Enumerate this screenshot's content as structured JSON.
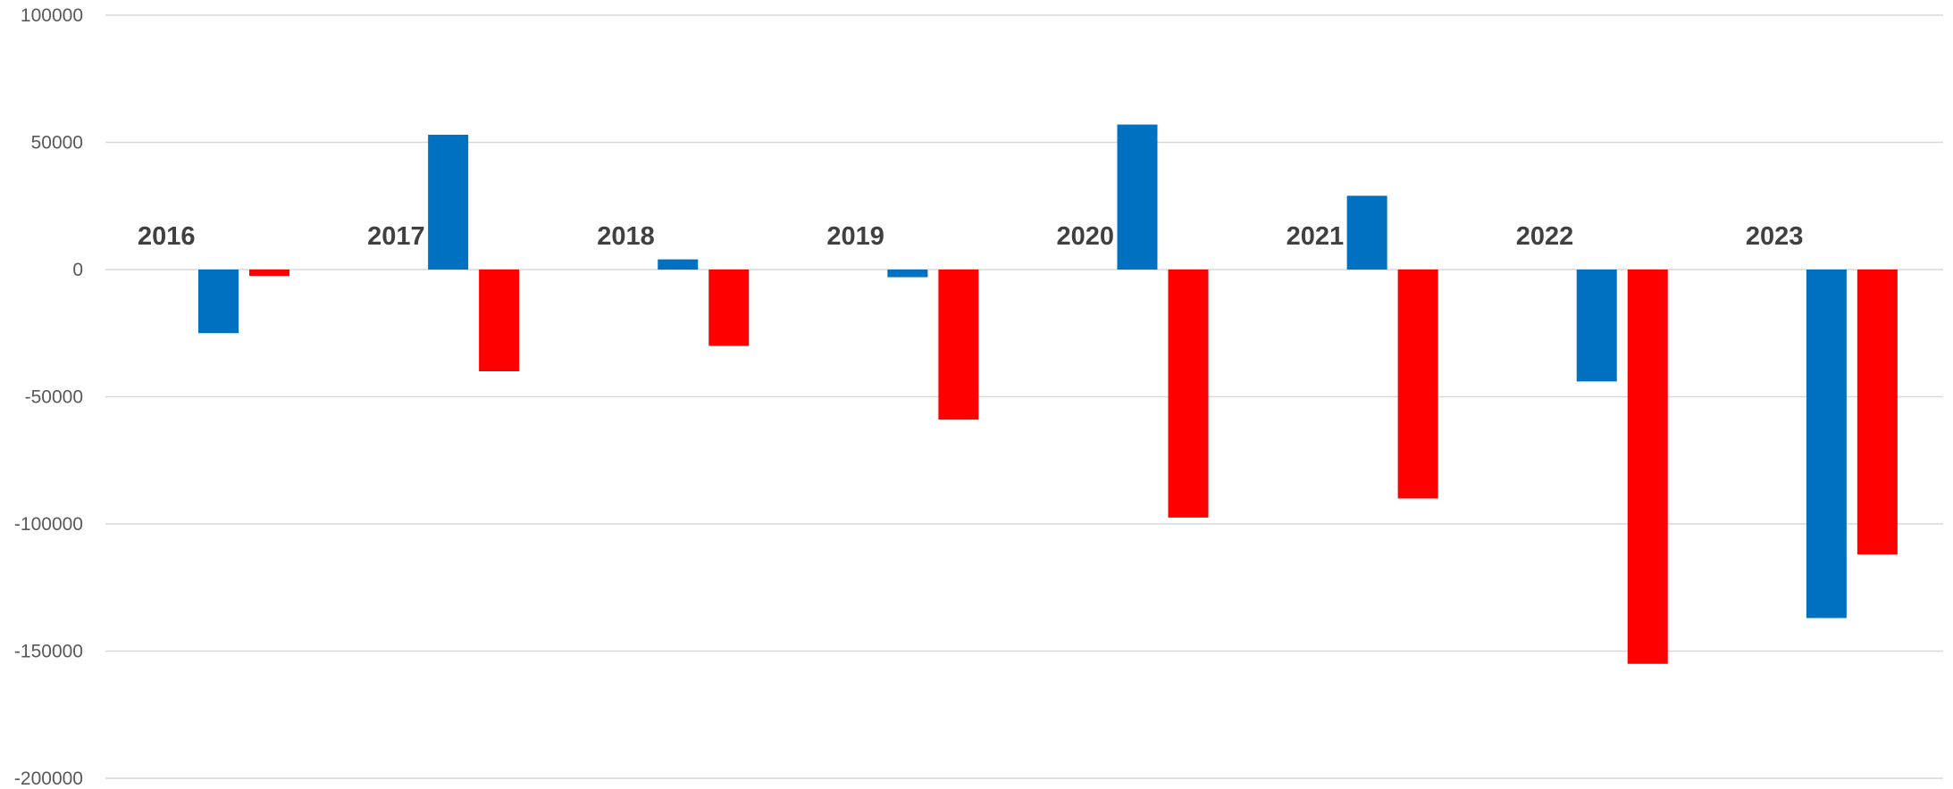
{
  "chart_data": {
    "type": "bar",
    "title": "",
    "xlabel": "",
    "ylabel": "",
    "categories": [
      "2016",
      "2017",
      "2018",
      "2019",
      "2020",
      "2021",
      "2022",
      "2023"
    ],
    "series": [
      {
        "color": "#0070C0",
        "values": [
          -25000,
          53000,
          4000,
          -3000,
          57000,
          29000,
          -44000,
          -137000
        ]
      },
      {
        "color": "#FF0000",
        "values": [
          -2500,
          -40000,
          -30000,
          -59000,
          -97500,
          -90000,
          -155000,
          -112000
        ]
      }
    ],
    "ylim": [
      -200000,
      100000
    ],
    "yticks": [
      100000,
      50000,
      0,
      -50000,
      -100000,
      -150000,
      -200000
    ],
    "grid": true,
    "legend": "none"
  }
}
